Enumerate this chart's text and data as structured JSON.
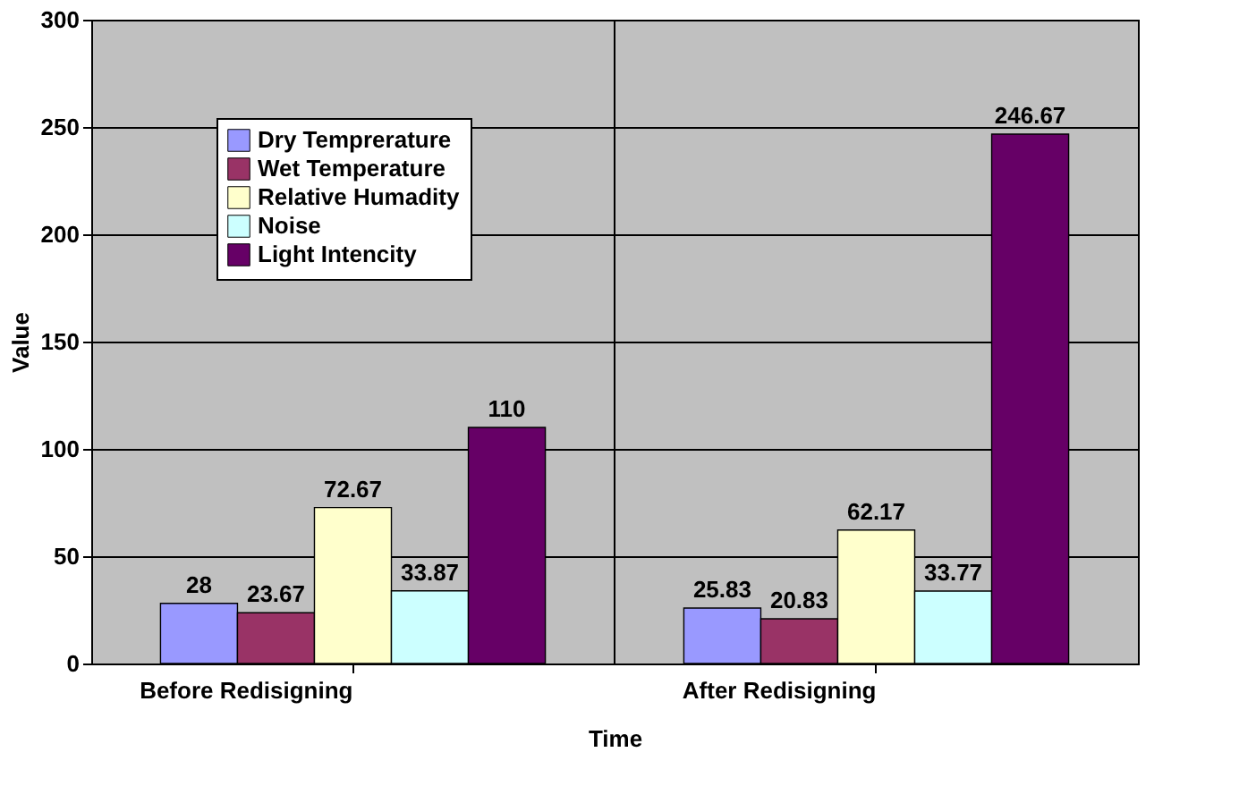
{
  "chart_data": {
    "type": "bar",
    "xlabel": "Time",
    "ylabel": "Value",
    "categories": [
      "Before Redisigning",
      "After Redisigning"
    ],
    "series": [
      {
        "name": "Dry Temprerature",
        "color": "#9999ff",
        "values": [
          28,
          25.83
        ]
      },
      {
        "name": "Wet Temperature",
        "color": "#993366",
        "values": [
          23.67,
          20.83
        ]
      },
      {
        "name": "Relative Humadity",
        "color": "#ffffcc",
        "values": [
          72.67,
          62.17
        ]
      },
      {
        "name": "Noise",
        "color": "#ccffff",
        "values": [
          33.87,
          33.77
        ]
      },
      {
        "name": "Light Intencity",
        "color": "#660066",
        "values": [
          110,
          246.67
        ]
      }
    ],
    "value_labels": [
      [
        "28",
        "25.83"
      ],
      [
        "23.67",
        "20.83"
      ],
      [
        "72.67",
        "62.17"
      ],
      [
        "33.87",
        "33.77"
      ],
      [
        "110",
        "246.67"
      ]
    ],
    "ylim": [
      0,
      300
    ],
    "yticks": [
      0,
      50,
      100,
      150,
      200,
      250,
      300
    ],
    "grid": true,
    "legend": "top left"
  }
}
